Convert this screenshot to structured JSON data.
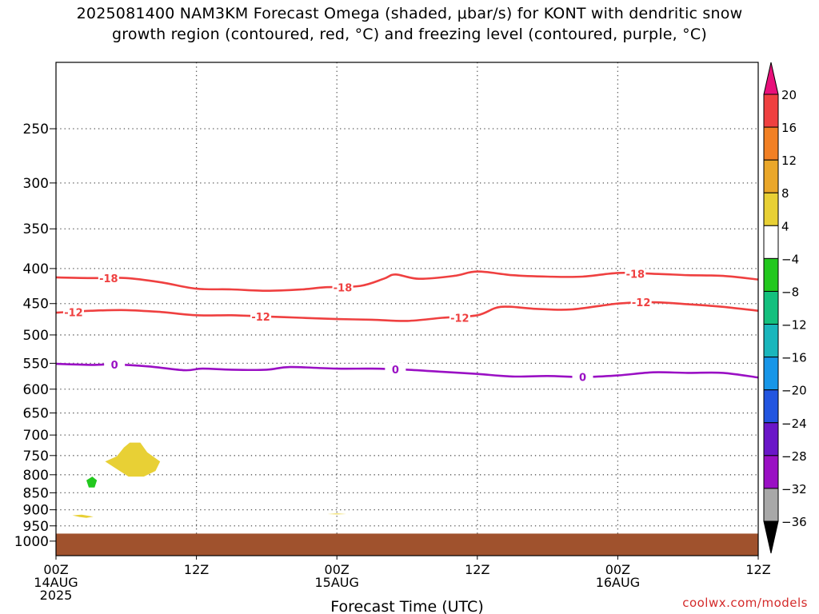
{
  "title_line1": "2025081400 NAM3KM Forecast Omega (shaded, μbar/s) for KONT with dendritic snow",
  "title_line2": "growth region (contoured, red, °C) and freezing level (contoured, purple, °C)",
  "credit": "coolwx.com/models",
  "chart_data": {
    "type": "time-height cross section",
    "xlabel": "Forecast Time (UTC)",
    "x_unit": "hours since 2025-08-14 00Z",
    "xlim": [
      0,
      60
    ],
    "x_ticks": [
      {
        "hour": 0,
        "lines": [
          "00Z",
          "14AUG",
          "2025"
        ]
      },
      {
        "hour": 12,
        "lines": [
          "12Z"
        ]
      },
      {
        "hour": 24,
        "lines": [
          "00Z",
          "15AUG"
        ]
      },
      {
        "hour": 36,
        "lines": [
          "12Z"
        ]
      },
      {
        "hour": 48,
        "lines": [
          "00Z",
          "16AUG"
        ]
      },
      {
        "hour": 60,
        "lines": [
          "12Z"
        ]
      }
    ],
    "y_axis": {
      "label": "",
      "unit": "hPa",
      "scale": "log",
      "reversed": true,
      "range": [
        1050,
        200
      ],
      "ticks": [
        250,
        300,
        350,
        400,
        450,
        500,
        550,
        600,
        650,
        700,
        750,
        800,
        850,
        900,
        950,
        1000
      ]
    },
    "grid": true,
    "terrain": {
      "color": "#a0522d",
      "level_hpa": 975
    },
    "colorbar": {
      "position": "right",
      "unit": "μbar/s",
      "tick_labels": [
        "20",
        "16",
        "12",
        "8",
        "4",
        "−4",
        "−8",
        "−12",
        "−16",
        "−20",
        "−24",
        "−28",
        "−32",
        "−36"
      ],
      "colors": [
        "#e8107a",
        "#ef4040",
        "#f28024",
        "#eaa72a",
        "#e8d035",
        "#ffffff",
        "#22c81e",
        "#14c07e",
        "#1ab6bc",
        "#1796e8",
        "#2255e0",
        "#6a16c8",
        "#9a10c4",
        "#a8a8a8",
        "#000000"
      ]
    },
    "series": [
      {
        "name": "-18",
        "color": "#ef4040",
        "type": "isotherm",
        "points": [
          [
            0,
            412
          ],
          [
            3,
            413
          ],
          [
            6,
            413
          ],
          [
            9,
            419
          ],
          [
            12,
            428
          ],
          [
            15,
            429
          ],
          [
            18,
            431
          ],
          [
            21,
            429
          ],
          [
            23,
            426
          ],
          [
            26,
            424
          ],
          [
            28,
            414
          ],
          [
            29,
            408
          ],
          [
            31,
            414
          ],
          [
            34,
            410
          ],
          [
            36,
            404
          ],
          [
            39,
            409
          ],
          [
            42,
            411
          ],
          [
            45,
            411
          ],
          [
            48,
            406
          ],
          [
            51,
            407
          ],
          [
            54,
            409
          ],
          [
            57,
            410
          ],
          [
            60,
            415
          ]
        ],
        "labels": [
          [
            4.5,
            413
          ],
          [
            24.5,
            426
          ],
          [
            49.5,
            407
          ]
        ]
      },
      {
        "name": "-12",
        "color": "#ef4040",
        "type": "isotherm",
        "points": [
          [
            0,
            464
          ],
          [
            3,
            461
          ],
          [
            6,
            460
          ],
          [
            9,
            463
          ],
          [
            12,
            468
          ],
          [
            15,
            468
          ],
          [
            18,
            470
          ],
          [
            21,
            472
          ],
          [
            24,
            474
          ],
          [
            27,
            475
          ],
          [
            30,
            477
          ],
          [
            33,
            472
          ],
          [
            36,
            468
          ],
          [
            38,
            455
          ],
          [
            41,
            458
          ],
          [
            44,
            459
          ],
          [
            48,
            450
          ],
          [
            51,
            448
          ],
          [
            54,
            451
          ],
          [
            57,
            455
          ],
          [
            60,
            461
          ]
        ],
        "labels": [
          [
            1.5,
            463
          ],
          [
            17.5,
            470
          ],
          [
            34.5,
            472
          ],
          [
            50,
            448
          ]
        ]
      },
      {
        "name": "0",
        "color": "#9a10c4",
        "type": "freezing level",
        "points": [
          [
            0,
            551
          ],
          [
            3,
            553
          ],
          [
            5,
            552
          ],
          [
            8,
            556
          ],
          [
            11,
            563
          ],
          [
            12.5,
            560
          ],
          [
            15,
            562
          ],
          [
            18,
            562
          ],
          [
            20,
            557
          ],
          [
            24,
            560
          ],
          [
            27,
            560
          ],
          [
            30,
            562
          ],
          [
            33,
            566
          ],
          [
            36,
            570
          ],
          [
            39,
            575
          ],
          [
            42,
            574
          ],
          [
            45,
            576
          ],
          [
            48,
            573
          ],
          [
            51,
            567
          ],
          [
            54,
            568
          ],
          [
            57,
            568
          ],
          [
            60,
            577
          ]
        ],
        "labels": [
          [
            5,
            552
          ],
          [
            29,
            561
          ],
          [
            45,
            576
          ]
        ]
      }
    ],
    "shaded_areas": [
      {
        "name": "omega +4 to +8",
        "color": "#e8d035",
        "points": [
          [
            4.2,
            765
          ],
          [
            5.2,
            752
          ],
          [
            5.8,
            730
          ],
          [
            6.3,
            718
          ],
          [
            7.2,
            718
          ],
          [
            7.8,
            742
          ],
          [
            8.9,
            765
          ],
          [
            8.5,
            790
          ],
          [
            7.5,
            805
          ],
          [
            6.2,
            805
          ],
          [
            5.2,
            785
          ]
        ]
      },
      {
        "name": "omega −4 to −8",
        "color": "#22c81e",
        "points": [
          [
            2.6,
            815
          ],
          [
            3.1,
            805
          ],
          [
            3.5,
            815
          ],
          [
            3.3,
            835
          ],
          [
            2.8,
            835
          ]
        ]
      },
      {
        "name": "omega +4 to +8",
        "color": "#e8d035",
        "points": [
          [
            1.4,
            917
          ],
          [
            2.2,
            915
          ],
          [
            3.2,
            921
          ],
          [
            2.6,
            925
          ],
          [
            2.0,
            922
          ]
        ]
      },
      {
        "name": "omega +4 to +8",
        "color": "#e8d035",
        "points": [
          [
            23.2,
            913
          ],
          [
            24.0,
            911
          ],
          [
            24.8,
            913
          ],
          [
            24.0,
            914
          ]
        ]
      }
    ]
  }
}
